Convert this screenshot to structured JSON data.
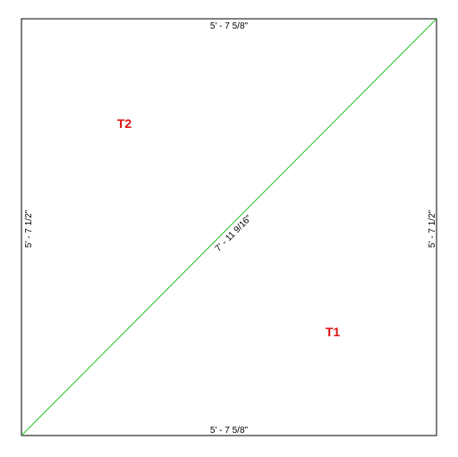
{
  "dimensions": {
    "top": "5' - 7 5/8\"",
    "bottom": "5' - 7 5/8\"",
    "left": "5' - 7 1/2\"",
    "right": "5' - 7 1/2\"",
    "diagonal": "7' - 11 9/16\""
  },
  "tags": {
    "t1": "T1",
    "t2": "T2"
  },
  "colors": {
    "outline": "#000000",
    "diagonal": "#22c322",
    "tag": "#dd1111"
  }
}
